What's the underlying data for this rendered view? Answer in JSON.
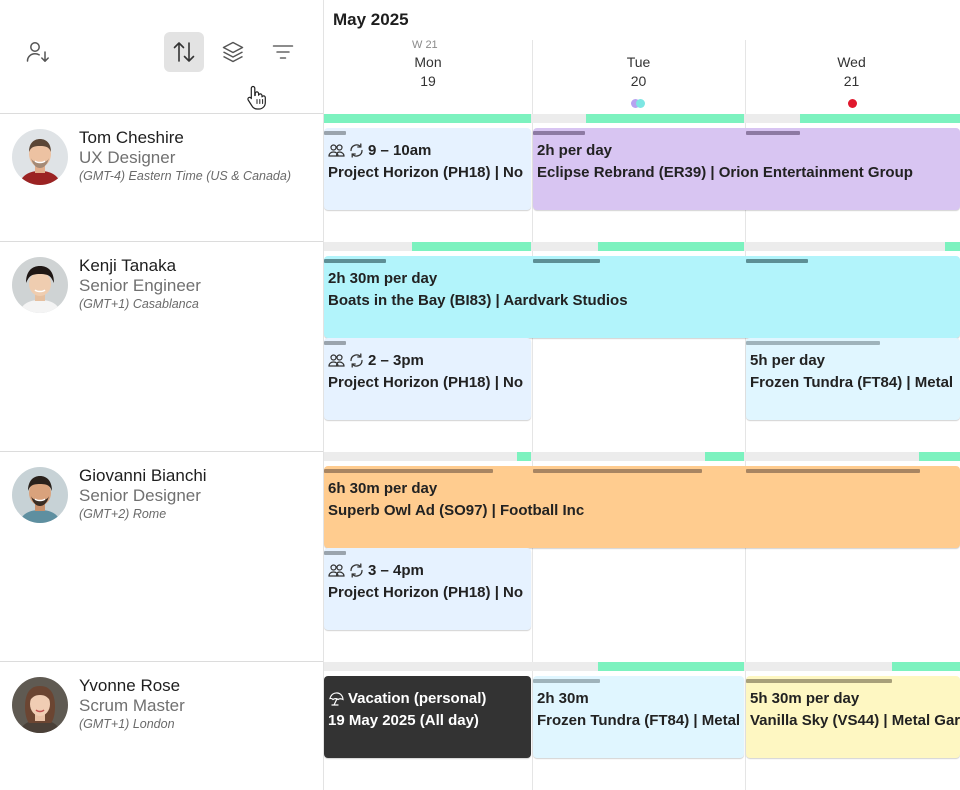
{
  "toolbar": {
    "buttons": [
      {
        "name": "sort-person-icon",
        "active": false
      },
      {
        "name": "sort-arrows-icon",
        "active": true
      },
      {
        "name": "layers-icon",
        "active": false
      },
      {
        "name": "filter-icon",
        "active": false
      }
    ]
  },
  "calendar": {
    "month": "May 2025",
    "week": "W 21",
    "days": [
      {
        "name": "Mon",
        "date": "19"
      },
      {
        "name": "Tue",
        "date": "20"
      },
      {
        "name": "Wed",
        "date": "21"
      }
    ]
  },
  "people": [
    {
      "name": "Tom Cheshire",
      "role": "UX Designer",
      "timezone": "(GMT-4) Eastern Time (US & Canada)"
    },
    {
      "name": "Kenji Tanaka",
      "role": "Senior Engineer",
      "timezone": "(GMT+1) Casablanca"
    },
    {
      "name": "Giovanni Bianchi",
      "role": "Senior Designer",
      "timezone": "(GMT+2) Rome"
    },
    {
      "name": "Yvonne Rose",
      "role": "Scrum Master",
      "timezone": "(GMT+1) London"
    }
  ],
  "cards": {
    "tom_ph": {
      "time": "9 – 10am",
      "title": "Project Horizon (PH18) | No"
    },
    "tom_er": {
      "time": "2h per day",
      "title": "Eclipse Rebrand (ER39) | Orion Entertainment Group"
    },
    "kenji_bi": {
      "time": "2h 30m per day",
      "title": "Boats in the Bay (BI83) | Aardvark Studios"
    },
    "kenji_ph": {
      "time": "2 – 3pm",
      "title": "Project Horizon (PH18) | No"
    },
    "kenji_ft": {
      "time": "5h per day",
      "title": "Frozen Tundra (FT84) | Metal"
    },
    "gio_so": {
      "time": "6h 30m per day",
      "title": "Superb Owl Ad (SO97) | Football Inc"
    },
    "gio_ph": {
      "time": "3 – 4pm",
      "title": "Project Horizon (PH18) | No"
    },
    "yv_vac": {
      "time": "Vacation (personal)",
      "title": "19 May 2025 (All day)"
    },
    "yv_ft": {
      "time": "2h 30m",
      "title": "Frozen Tundra (FT84) | Metal"
    },
    "yv_vs": {
      "time": "5h 30m per day",
      "title": "Vanilla Sky (VS44) | Metal Gar"
    }
  },
  "colors": {
    "availability": "#7cf2bf",
    "tentative": "#e6f2ff",
    "eclipse": "#d8c5f2",
    "boats": "#b2f4fb",
    "frozen": "#e0f6ff",
    "superb": "#ffcc8f",
    "vacation": "#333333",
    "vanilla": "#fef7c2",
    "holiday_marker": "#e0182d"
  }
}
